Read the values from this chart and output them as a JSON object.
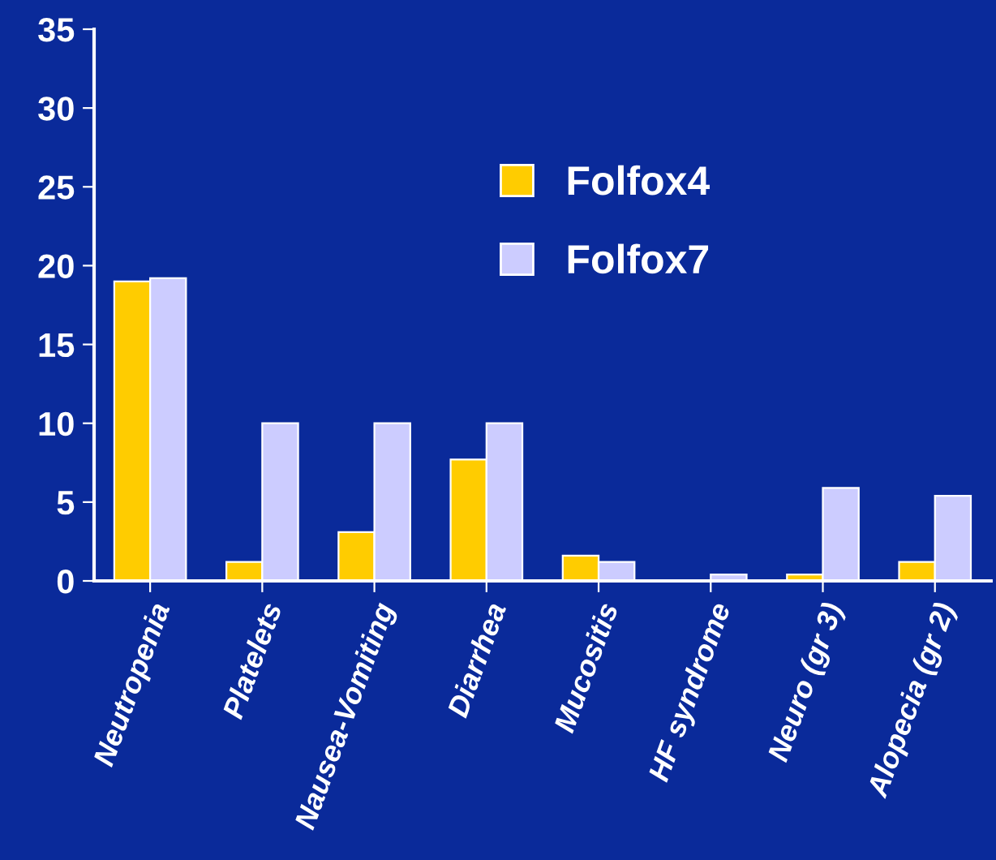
{
  "chart_data": {
    "type": "bar",
    "categories": [
      "Neutropenia",
      "Platelets",
      "Nausea-Vomiting",
      "Diarrhea",
      "Mucositis",
      "HF syndrome",
      "Neuro (gr 3)",
      "Alopecia (gr 2)"
    ],
    "series": [
      {
        "name": "Folfox4",
        "color": "#ffcc00",
        "values": [
          19.0,
          1.2,
          3.1,
          7.7,
          1.6,
          0,
          0.4,
          1.2
        ]
      },
      {
        "name": "Folfox7",
        "color": "#ccccff",
        "values": [
          19.2,
          10,
          10,
          10,
          1.2,
          0.4,
          5.9,
          5.4
        ]
      }
    ],
    "ylim": [
      0,
      35
    ],
    "yticks": [
      0,
      5,
      10,
      15,
      20,
      25,
      30,
      35
    ],
    "grid": false,
    "legend": "top"
  }
}
